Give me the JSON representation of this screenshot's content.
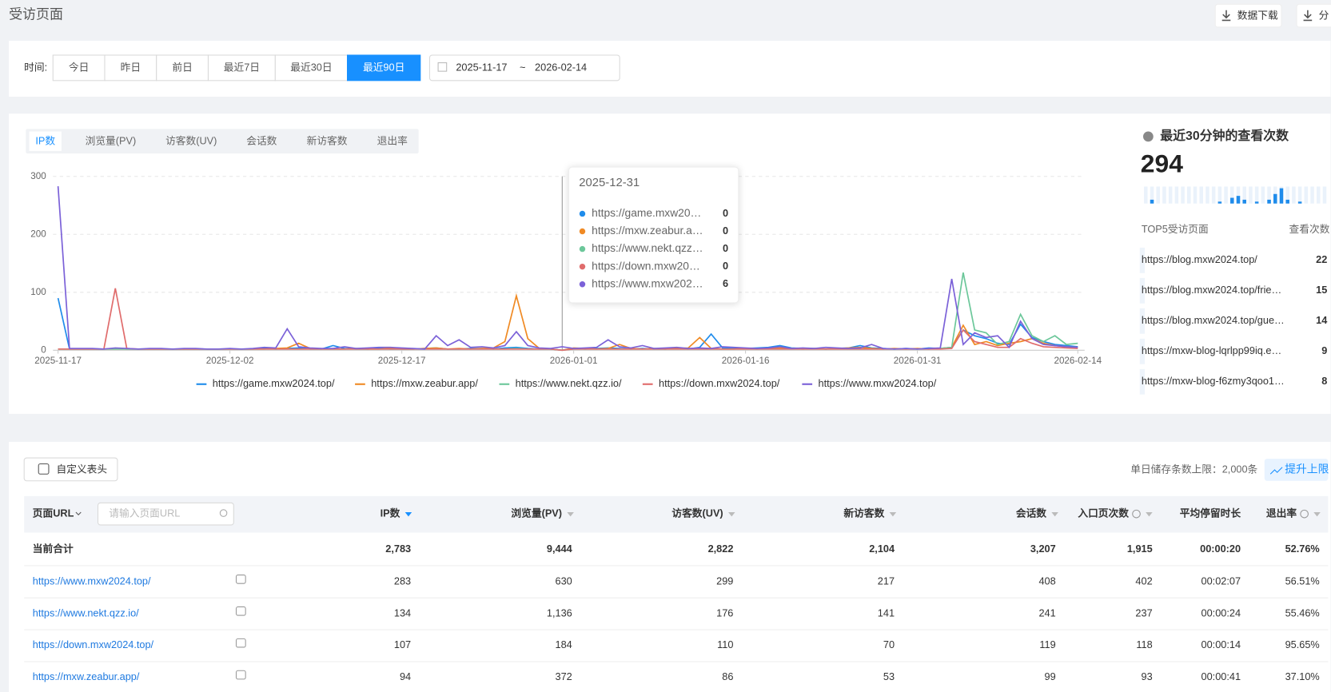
{
  "header": {
    "title": "受访页面",
    "buttons": [
      "数据下载",
      "分"
    ]
  },
  "filter": {
    "label": "时间:",
    "options": [
      "今日",
      "昨日",
      "前日",
      "最近7日",
      "最近30日",
      "最近90日"
    ],
    "active": 5,
    "date_start": "2025-11-17",
    "date_sep": "~",
    "date_end": "2026-02-14"
  },
  "tabs": {
    "items": [
      "IP数",
      "浏览量(PV)",
      "访客数(UV)",
      "会话数",
      "新访客数",
      "退出率"
    ],
    "active": 0
  },
  "chart_data": {
    "type": "line",
    "x": [
      "2025-11-17",
      "2025-11-18",
      "2025-11-19",
      "2025-11-20",
      "2025-11-21",
      "2025-11-22",
      "2025-11-23",
      "2025-11-24",
      "2025-11-25",
      "2025-11-26",
      "2025-11-27",
      "2025-11-28",
      "2025-11-29",
      "2025-11-30",
      "2025-12-01",
      "2025-12-02",
      "2025-12-03",
      "2025-12-04",
      "2025-12-05",
      "2025-12-06",
      "2025-12-07",
      "2025-12-08",
      "2025-12-09",
      "2025-12-10",
      "2025-12-11",
      "2025-12-12",
      "2025-12-13",
      "2025-12-14",
      "2025-12-15",
      "2025-12-16",
      "2025-12-17",
      "2025-12-18",
      "2025-12-19",
      "2025-12-20",
      "2025-12-21",
      "2025-12-22",
      "2025-12-23",
      "2025-12-24",
      "2025-12-25",
      "2025-12-26",
      "2025-12-27",
      "2025-12-28",
      "2025-12-29",
      "2025-12-30",
      "2025-12-31",
      "2026-01-01",
      "2026-01-02",
      "2026-01-03",
      "2026-01-04",
      "2026-01-05",
      "2026-01-06",
      "2026-01-07",
      "2026-01-08",
      "2026-01-09",
      "2026-01-10",
      "2026-01-11",
      "2026-01-12",
      "2026-01-13",
      "2026-01-14",
      "2026-01-15",
      "2026-01-16",
      "2026-01-17",
      "2026-01-18",
      "2026-01-19",
      "2026-01-20",
      "2026-01-21",
      "2026-01-22",
      "2026-01-23",
      "2026-01-24",
      "2026-01-25",
      "2026-01-26",
      "2026-01-27",
      "2026-01-28",
      "2026-01-29",
      "2026-01-30",
      "2026-01-31",
      "2026-02-01",
      "2026-02-02",
      "2026-02-03",
      "2026-02-04",
      "2026-02-05",
      "2026-02-06",
      "2026-02-07",
      "2026-02-08",
      "2026-02-09",
      "2026-02-10",
      "2026-02-11",
      "2026-02-12",
      "2026-02-13",
      "2026-02-14"
    ],
    "xticks": [
      "2025-11-17",
      "2025-12-02",
      "2025-12-17",
      "2026-01-01",
      "2026-01-16",
      "2026-01-31",
      "2026-02-14"
    ],
    "ylim": [
      0,
      300
    ],
    "yticks": [
      0,
      100,
      200,
      300
    ],
    "grid": true,
    "series": [
      {
        "name": "https://game.mxw2024.top/",
        "color": "#1f8ceb",
        "values": [
          90,
          2,
          2,
          2,
          2,
          3,
          2,
          2,
          2,
          2,
          2,
          2,
          2,
          2,
          2,
          2,
          2,
          2,
          3,
          2,
          3,
          4,
          2,
          2,
          8,
          3,
          2,
          2,
          3,
          2,
          2,
          2,
          3,
          4,
          2,
          2,
          3,
          3,
          2,
          4,
          5,
          3,
          2,
          2,
          0,
          3,
          2,
          3,
          4,
          3,
          2,
          3,
          2,
          2,
          3,
          2,
          5,
          28,
          4,
          3,
          3,
          4,
          5,
          8,
          4,
          3,
          3,
          2,
          3,
          4,
          8,
          4,
          3,
          2,
          3,
          2,
          4,
          3,
          5,
          35,
          25,
          20,
          12,
          10,
          45,
          22,
          15,
          10,
          8,
          6
        ]
      },
      {
        "name": "https://mxw.zeabur.app/",
        "color": "#f08a24",
        "values": [
          2,
          2,
          2,
          2,
          2,
          2,
          2,
          2,
          2,
          2,
          2,
          2,
          2,
          2,
          2,
          2,
          2,
          2,
          2,
          3,
          4,
          12,
          3,
          2,
          2,
          2,
          3,
          2,
          2,
          3,
          2,
          2,
          3,
          4,
          2,
          3,
          2,
          3,
          4,
          15,
          94,
          20,
          3,
          2,
          0,
          4,
          3,
          2,
          3,
          10,
          3,
          2,
          3,
          2,
          3,
          4,
          22,
          3,
          2,
          2,
          3,
          2,
          3,
          4,
          3,
          2,
          3,
          2,
          3,
          4,
          5,
          3,
          2,
          3,
          2,
          3,
          2,
          3,
          5,
          43,
          10,
          15,
          8,
          12,
          15,
          20,
          12,
          8,
          6,
          5
        ]
      },
      {
        "name": "https://www.nekt.qzz.io/",
        "color": "#6cc79a",
        "values": [
          2,
          2,
          2,
          2,
          2,
          2,
          2,
          2,
          2,
          2,
          2,
          2,
          2,
          2,
          2,
          2,
          2,
          2,
          2,
          2,
          2,
          2,
          2,
          2,
          2,
          2,
          2,
          2,
          2,
          2,
          2,
          2,
          2,
          2,
          2,
          2,
          2,
          2,
          2,
          2,
          3,
          2,
          2,
          2,
          0,
          2,
          2,
          2,
          2,
          2,
          2,
          2,
          2,
          2,
          2,
          2,
          2,
          2,
          2,
          2,
          2,
          2,
          2,
          2,
          2,
          2,
          2,
          2,
          2,
          2,
          2,
          2,
          2,
          2,
          2,
          2,
          2,
          3,
          5,
          134,
          35,
          30,
          10,
          15,
          62,
          25,
          15,
          25,
          10,
          12
        ]
      },
      {
        "name": "https://down.mxw2024.top/",
        "color": "#e06c6c",
        "values": [
          2,
          2,
          2,
          2,
          2,
          107,
          3,
          2,
          2,
          2,
          2,
          2,
          2,
          2,
          2,
          2,
          2,
          2,
          2,
          2,
          2,
          2,
          2,
          2,
          2,
          2,
          2,
          2,
          2,
          2,
          2,
          2,
          2,
          2,
          2,
          2,
          2,
          2,
          2,
          2,
          2,
          2,
          2,
          2,
          0,
          2,
          2,
          2,
          2,
          2,
          2,
          2,
          2,
          2,
          2,
          2,
          2,
          2,
          2,
          2,
          2,
          2,
          2,
          2,
          2,
          2,
          2,
          2,
          2,
          2,
          2,
          2,
          2,
          2,
          2,
          2,
          2,
          2,
          3,
          35,
          15,
          10,
          5,
          5,
          20,
          12,
          6,
          5,
          4,
          3
        ]
      },
      {
        "name": "https://www.mxw2024.top/",
        "color": "#7b61d8",
        "values": [
          283,
          3,
          3,
          3,
          2,
          4,
          3,
          2,
          3,
          3,
          2,
          3,
          3,
          2,
          2,
          3,
          2,
          3,
          5,
          4,
          37,
          6,
          4,
          3,
          3,
          6,
          3,
          4,
          5,
          5,
          4,
          3,
          2,
          25,
          8,
          18,
          5,
          6,
          4,
          8,
          32,
          8,
          4,
          3,
          6,
          3,
          4,
          5,
          18,
          6,
          4,
          8,
          3,
          4,
          5,
          3,
          4,
          3,
          6,
          5,
          4,
          3,
          4,
          6,
          3,
          4,
          3,
          5,
          4,
          3,
          4,
          10,
          3,
          2,
          3,
          2,
          3,
          4,
          123,
          10,
          30,
          22,
          25,
          5,
          50,
          20,
          10,
          8,
          6,
          5
        ]
      }
    ],
    "tooltip": {
      "date": "2025-12-31",
      "items": [
        {
          "name": "https://game.mxw20…",
          "value": 0
        },
        {
          "name": "https://mxw.zeabur.a…",
          "value": 0
        },
        {
          "name": "https://www.nekt.qzz…",
          "value": 0
        },
        {
          "name": "https://down.mxw20…",
          "value": 0
        },
        {
          "name": "https://www.mxw202…",
          "value": 6
        }
      ]
    }
  },
  "realtime": {
    "title": "最近30分钟的查看次数",
    "value": 294,
    "bars": [
      0,
      2,
      0,
      0,
      0,
      0,
      0,
      0,
      0,
      0,
      0,
      0,
      1,
      0,
      3,
      4,
      2,
      0,
      1,
      0,
      2,
      5,
      8,
      2,
      0,
      1,
      0,
      0,
      0,
      0
    ],
    "top_header": [
      "TOP5受访页面",
      "查看次数"
    ],
    "top": [
      {
        "url": "https://blog.mxw2024.top/",
        "count": 22
      },
      {
        "url": "https://blog.mxw2024.top/frie…",
        "count": 15
      },
      {
        "url": "https://blog.mxw2024.top/gue…",
        "count": 14
      },
      {
        "url": "https://mxw-blog-lqrlpp99iq.e…",
        "count": 9
      },
      {
        "url": "https://mxw-blog-f6zmy3qoo1…",
        "count": 8
      }
    ]
  },
  "table": {
    "custom_button": "自定义表头",
    "limit_note": "单日储存条数上限：2,000条",
    "upgrade": "提升上限",
    "search_placeholder": "请输入页面URL",
    "columns": [
      "页面URL",
      "IP数",
      "浏览量(PV)",
      "访客数(UV)",
      "新访客数",
      "会话数",
      "入口页次数",
      "平均停留时长",
      "退出率"
    ],
    "total": [
      "当前合计",
      "2,783",
      "9,444",
      "2,822",
      "2,104",
      "3,207",
      "1,915",
      "00:00:20",
      "52.76%"
    ],
    "rows": [
      [
        "https://www.mxw2024.top/",
        "283",
        "630",
        "299",
        "217",
        "408",
        "402",
        "00:02:07",
        "56.51%"
      ],
      [
        "https://www.nekt.qzz.io/",
        "134",
        "1,136",
        "176",
        "141",
        "241",
        "237",
        "00:00:24",
        "55.46%"
      ],
      [
        "https://down.mxw2024.top/",
        "107",
        "184",
        "110",
        "70",
        "119",
        "118",
        "00:00:14",
        "95.65%"
      ],
      [
        "https://mxw.zeabur.app/",
        "94",
        "372",
        "86",
        "53",
        "99",
        "93",
        "00:00:41",
        "37.10%"
      ]
    ]
  }
}
